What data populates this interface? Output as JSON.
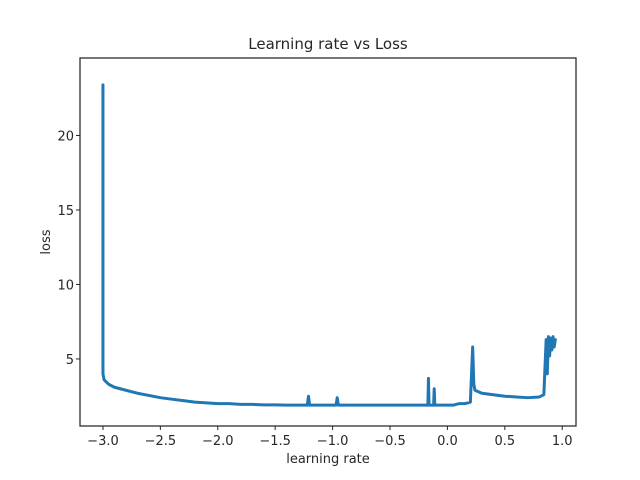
{
  "chart_data": {
    "type": "line",
    "title": "Learning rate vs Loss",
    "xlabel": "learning rate",
    "ylabel": "loss",
    "xlim": [
      -3.2,
      1.12
    ],
    "ylim": [
      0.5,
      25.2
    ],
    "xticks": [
      -3.0,
      -2.5,
      -2.0,
      -1.5,
      -1.0,
      -0.5,
      0.0,
      0.5,
      1.0
    ],
    "xtick_labels": [
      "−3.0",
      "−2.5",
      "−2.0",
      "−1.5",
      "−1.0",
      "−0.5",
      "0.0",
      "0.5",
      "1.0"
    ],
    "yticks": [
      5,
      10,
      15,
      20
    ],
    "ytick_labels": [
      "5",
      "10",
      "15",
      "20"
    ],
    "grid": false,
    "line_color": "#1f77b4",
    "series": [
      {
        "x": [
          -3.0,
          -3.0,
          -3.0,
          -2.99,
          -2.95,
          -2.9,
          -2.8,
          -2.7,
          -2.6,
          -2.5,
          -2.4,
          -2.3,
          -2.2,
          -2.1,
          -2.0,
          -1.9,
          -1.8,
          -1.7,
          -1.6,
          -1.5,
          -1.4,
          -1.3,
          -1.22,
          -1.21,
          -1.2,
          -1.1,
          -1.0,
          -0.97,
          -0.96,
          -0.95,
          -0.9,
          -0.8,
          -0.7,
          -0.6,
          -0.5,
          -0.4,
          -0.3,
          -0.2,
          -0.17,
          -0.165,
          -0.16,
          -0.12,
          -0.115,
          -0.11,
          -0.05,
          0.0,
          0.05,
          0.1,
          0.15,
          0.2,
          0.22,
          0.23,
          0.24,
          0.3,
          0.4,
          0.5,
          0.6,
          0.7,
          0.8,
          0.84,
          0.86,
          0.87,
          0.88,
          0.89,
          0.9,
          0.91,
          0.92,
          0.93,
          0.94
        ],
        "y": [
          7.7,
          23.4,
          4.0,
          3.6,
          3.3,
          3.1,
          2.9,
          2.7,
          2.55,
          2.4,
          2.3,
          2.2,
          2.1,
          2.05,
          2.0,
          2.0,
          1.95,
          1.95,
          1.92,
          1.92,
          1.9,
          1.9,
          1.9,
          2.5,
          1.9,
          1.9,
          1.9,
          1.9,
          2.4,
          1.9,
          1.9,
          1.9,
          1.9,
          1.9,
          1.9,
          1.9,
          1.9,
          1.9,
          1.9,
          3.7,
          1.9,
          1.9,
          3.0,
          1.9,
          1.9,
          1.9,
          1.9,
          2.0,
          2.0,
          2.1,
          5.8,
          3.3,
          2.9,
          2.7,
          2.6,
          2.5,
          2.45,
          2.4,
          2.45,
          2.6,
          6.3,
          4.0,
          6.5,
          5.2,
          6.4,
          5.6,
          6.5,
          5.8,
          6.3
        ]
      }
    ]
  }
}
